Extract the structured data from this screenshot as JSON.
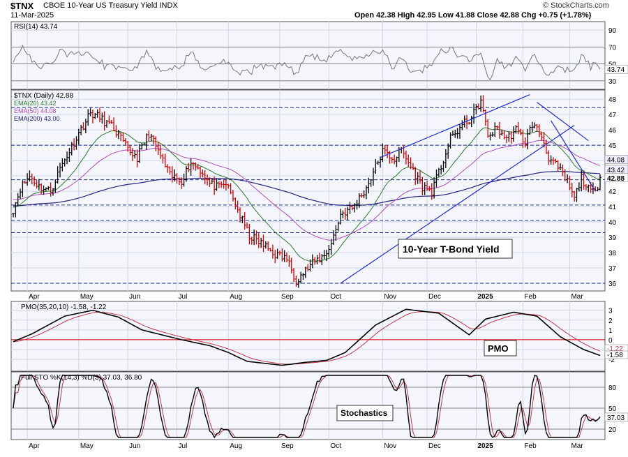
{
  "header": {
    "symbol": "$TNX",
    "description": "CBOE 10-Year US Treasury Yield INDX",
    "date": "11-Mar-2025",
    "ohlc_text": "Open 42.38  High 42.95  Low 41.88  Close 42.88  Chg +0.75 (+1.78%)",
    "credit": "© StockCharts.com"
  },
  "colors": {
    "price_up": "#000000",
    "price_down": "#d40000",
    "ema20": "#2d7a2d",
    "ema50": "#b14cc1",
    "ema200": "#22227a",
    "trendline": "#1f2bd4",
    "pmo": "#000000",
    "pmo_signal": "#c0364a",
    "stoch_k": "#000000",
    "stoch_d": "#c0364a",
    "rsi": "#777777",
    "zero_line": "#d40000"
  },
  "x_axis": {
    "ticks": [
      "Apr",
      "May",
      "Jun",
      "Jul",
      "Aug",
      "Sep",
      "Oct",
      "Nov",
      "Dec",
      "2025",
      "Feb",
      "Mar"
    ],
    "tick_index": [
      6,
      28,
      49,
      70,
      92,
      114,
      135,
      158,
      177,
      198,
      218,
      238
    ],
    "total_bars": 252
  },
  "chart_data": [
    {
      "type": "line",
      "panel": "rsi",
      "legend": "RSI(14) 43.74",
      "ylim": [
        20,
        100
      ],
      "yticks": [
        30,
        50,
        70,
        90
      ],
      "hlines": [
        30,
        50,
        70
      ],
      "last_value_label": "43.74",
      "last_value": 43.74
    },
    {
      "type": "ohlc",
      "panel": "price",
      "legend_price": "$TNX (Daily) 42.88",
      "legend_ema20": "EMA(20) 43.42",
      "legend_ema50": "EMA(50) 44.08",
      "legend_ema200": "EMA(200) 43.00",
      "annotation": "10-Year T-Bond Yield",
      "ylim": [
        35.5,
        48.6
      ],
      "yticks": [
        36,
        37,
        38,
        39,
        40,
        41,
        42,
        43,
        44,
        45,
        46,
        47,
        48
      ],
      "dashed_levels": [
        36.0,
        39.3,
        40.1,
        41.1,
        42.75,
        45.0,
        47.45
      ],
      "price_labels": [
        {
          "text": "44.08",
          "value": 44.08,
          "kind": "ema50"
        },
        {
          "text": "43.42",
          "value": 43.42,
          "kind": "ema20"
        },
        {
          "text": "42.88",
          "value": 42.88,
          "kind": "close"
        }
      ],
      "path_index": [
        0,
        3,
        7,
        11,
        16,
        20,
        25,
        28,
        33,
        37,
        43,
        49,
        53,
        58,
        63,
        67,
        72,
        76,
        80,
        84,
        88,
        91,
        94,
        97,
        101,
        106,
        112,
        117,
        121,
        128,
        133,
        136,
        140,
        145,
        151,
        155,
        158,
        163,
        166,
        170,
        175,
        179,
        183,
        187,
        192,
        196,
        200,
        203,
        207,
        211,
        215,
        219,
        222,
        226,
        229,
        233,
        237,
        240,
        243,
        246,
        249,
        251
      ],
      "path_value": [
        40.8,
        42.2,
        43.0,
        42.3,
        42.0,
        43.5,
        44.9,
        45.8,
        47.1,
        46.8,
        46.1,
        44.7,
        44.2,
        45.8,
        44.3,
        43.0,
        42.7,
        43.9,
        43.4,
        42.5,
        42.2,
        42.5,
        41.5,
        40.4,
        39.1,
        38.6,
        37.9,
        37.6,
        36.2,
        37.3,
        37.8,
        38.6,
        40.5,
        40.9,
        42.2,
        43.6,
        44.6,
        44.1,
        44.7,
        43.6,
        42.3,
        42.0,
        43.6,
        45.4,
        46.3,
        46.8,
        47.9,
        45.6,
        46.1,
        45.4,
        46.0,
        45.2,
        46.4,
        45.6,
        44.2,
        43.5,
        42.6,
        41.5,
        42.9,
        42.1,
        41.9,
        42.9
      ],
      "ema20_start": 41.0,
      "ema50_start": 41.5,
      "ema200_start": 41.05,
      "trendlines": [
        {
          "i1": 140,
          "v1": 36.0,
          "i2": 240,
          "v2": 46.3
        },
        {
          "i1": 157,
          "v1": 44.2,
          "i2": 221,
          "v2": 48.3
        },
        {
          "i1": 224,
          "v1": 47.8,
          "i2": 246,
          "v2": 45.3
        },
        {
          "i1": 230,
          "v1": 46.6,
          "i2": 249,
          "v2": 42.0
        }
      ]
    },
    {
      "type": "line",
      "panel": "pmo",
      "legend": "PMO(35,20,10) -1.58, -1.22",
      "annotation": "PMO",
      "ylim": [
        -3.2,
        3.9
      ],
      "yticks": [
        -2,
        -1,
        0,
        1,
        2,
        3
      ],
      "zero_line": 0,
      "last_value_labels": [
        "-1.22",
        "-1.58"
      ],
      "pmo_index": [
        0,
        8,
        22,
        34,
        45,
        55,
        72,
        84,
        92,
        100,
        115,
        125,
        134,
        142,
        155,
        168,
        182,
        195,
        202,
        214,
        224,
        234,
        244,
        251
      ],
      "pmo_value": [
        -0.2,
        0.6,
        2.4,
        3.0,
        2.3,
        1.0,
        0.0,
        -0.6,
        -1.3,
        -2.2,
        -2.6,
        -2.3,
        -2.1,
        -1.3,
        1.5,
        3.1,
        2.7,
        0.5,
        2.1,
        2.8,
        2.4,
        0.3,
        -1.0,
        -1.6
      ]
    },
    {
      "type": "line",
      "panel": "stochastics",
      "legend": "Full STO %K(14,3) %D(3) 37.03, 36.80",
      "annotation": "Stochastics",
      "ylim": [
        5,
        102
      ],
      "yticks": [
        20,
        50,
        80
      ],
      "hlines": [
        20,
        50,
        80
      ],
      "last_value_label": "37.03",
      "last_value": 37.03
    }
  ]
}
